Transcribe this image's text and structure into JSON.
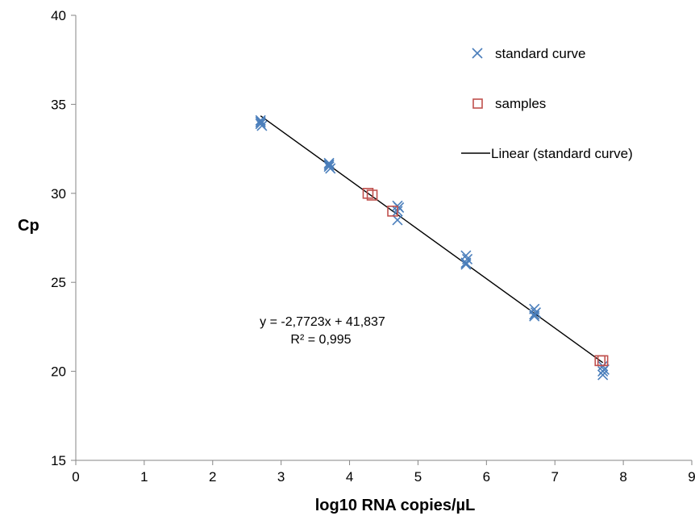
{
  "chart_data": {
    "type": "scatter",
    "title": "",
    "xlabel": "log10 RNA copies/µL",
    "ylabel": "Cp",
    "xlim": [
      0,
      9
    ],
    "ylim": [
      15,
      40
    ],
    "x_ticks": [
      0,
      1,
      2,
      3,
      4,
      5,
      6,
      7,
      8,
      9
    ],
    "y_ticks": [
      15,
      20,
      25,
      30,
      35,
      40
    ],
    "x_tick_labels": [
      "0",
      "1",
      "2",
      "3",
      "4",
      "5",
      "6",
      "7",
      "8",
      "9"
    ],
    "y_tick_labels": [
      "15",
      "20",
      "25",
      "30",
      "35",
      "40"
    ],
    "grid": false,
    "legend_position": "top-right",
    "series": [
      {
        "name": "standard curve",
        "marker": "x",
        "color": "#4a7ebb",
        "points": [
          {
            "x": 2.7,
            "y": 34.1
          },
          {
            "x": 2.7,
            "y": 33.9
          },
          {
            "x": 2.7,
            "y": 34.0
          },
          {
            "x": 2.72,
            "y": 33.8
          },
          {
            "x": 3.7,
            "y": 31.7
          },
          {
            "x": 3.7,
            "y": 31.5
          },
          {
            "x": 3.7,
            "y": 31.6
          },
          {
            "x": 3.72,
            "y": 31.4
          },
          {
            "x": 4.7,
            "y": 29.3
          },
          {
            "x": 4.7,
            "y": 29.0
          },
          {
            "x": 4.7,
            "y": 28.5
          },
          {
            "x": 4.72,
            "y": 29.2
          },
          {
            "x": 5.7,
            "y": 26.5
          },
          {
            "x": 5.7,
            "y": 26.1
          },
          {
            "x": 5.7,
            "y": 26.0
          },
          {
            "x": 5.72,
            "y": 26.3
          },
          {
            "x": 6.7,
            "y": 23.5
          },
          {
            "x": 6.7,
            "y": 23.2
          },
          {
            "x": 6.7,
            "y": 23.1
          },
          {
            "x": 6.72,
            "y": 23.3
          },
          {
            "x": 7.7,
            "y": 20.3
          },
          {
            "x": 7.7,
            "y": 20.0
          },
          {
            "x": 7.7,
            "y": 19.8
          },
          {
            "x": 7.72,
            "y": 20.1
          }
        ]
      },
      {
        "name": "samples",
        "marker": "square",
        "color": "#c0504d",
        "points": [
          {
            "x": 4.27,
            "y": 30.0
          },
          {
            "x": 4.33,
            "y": 29.9
          },
          {
            "x": 4.63,
            "y": 29.0
          },
          {
            "x": 7.66,
            "y": 20.6
          },
          {
            "x": 7.7,
            "y": 20.6
          }
        ]
      },
      {
        "name": "Linear (standard curve)",
        "type": "line",
        "color": "#000000",
        "slope": -2.7723,
        "intercept": 41.837,
        "x_range": [
          2.7,
          7.7
        ]
      }
    ],
    "annotations": {
      "equation": "y = -2,7723x + 41,837",
      "r_squared": "R² = 0,995"
    }
  }
}
